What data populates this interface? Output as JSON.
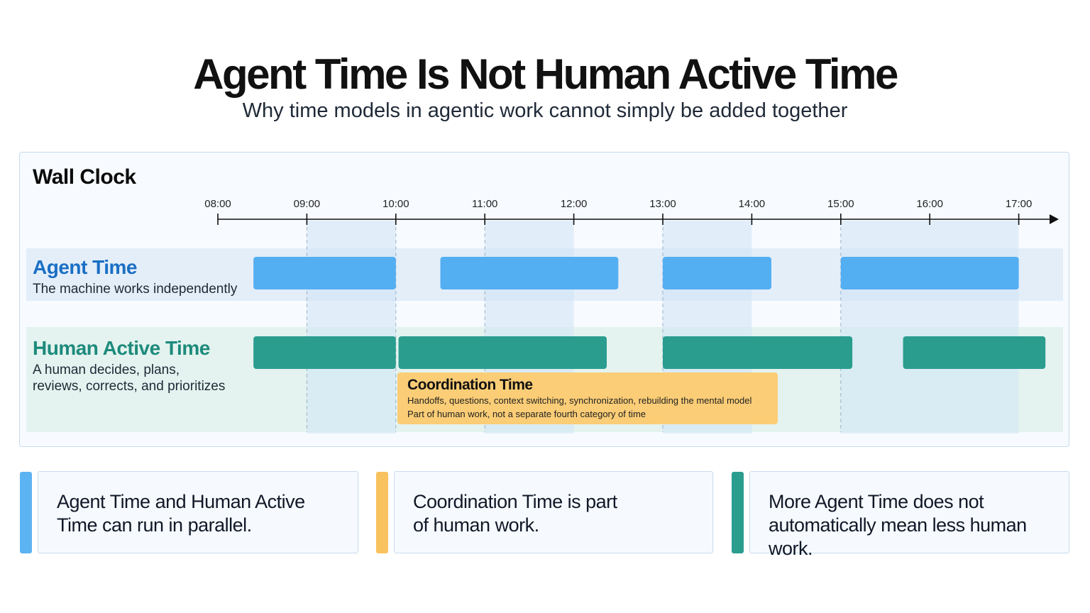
{
  "header": {
    "title": "Agent Time Is Not Human Active Time",
    "subtitle": "Why time models in agentic work cannot simply be added together"
  },
  "panel": {
    "title": "Wall Clock",
    "ticks": [
      "08:00",
      "09:00",
      "10:00",
      "11:00",
      "12:00",
      "13:00",
      "14:00",
      "15:00",
      "16:00",
      "17:00"
    ]
  },
  "agent_row": {
    "title": "Agent Time",
    "description": "The machine works independently",
    "color": "#54aef2",
    "segments": [
      [
        8.4,
        10.0
      ],
      [
        10.5,
        12.5
      ],
      [
        13.0,
        14.22
      ],
      [
        15.0,
        17.0
      ]
    ]
  },
  "human_row": {
    "title": "Human Active Time",
    "description_lines": [
      "A human decides, plans,",
      "reviews, corrects, and prioritizes"
    ],
    "color": "#2a9d8f",
    "segments": [
      [
        8.4,
        10.0
      ],
      [
        10.03,
        12.37
      ],
      [
        13.0,
        15.13
      ],
      [
        15.7,
        17.3
      ]
    ]
  },
  "parallel_zones": [
    [
      9.0,
      10.0
    ],
    [
      11.0,
      12.0
    ],
    [
      13.0,
      14.0
    ],
    [
      15.0,
      17.0
    ]
  ],
  "coordination": {
    "title": "Coordination Time",
    "line1": "Handoffs, questions, context switching, synchronization, rebuilding the mental model",
    "line2": "Part of human work, not a separate fourth category of time",
    "color": "#fbcd76"
  },
  "cards": [
    {
      "line1": "Agent Time and Human Active",
      "line2": "Time can run in parallel.",
      "accent": "#5cb3f2"
    },
    {
      "line1": "Coordination Time is part",
      "line2": "of human work.",
      "accent": "#f8c25e"
    },
    {
      "line1": "More Agent Time does not",
      "line2": "automatically mean less human work.",
      "accent": "#2a9d8f"
    }
  ]
}
